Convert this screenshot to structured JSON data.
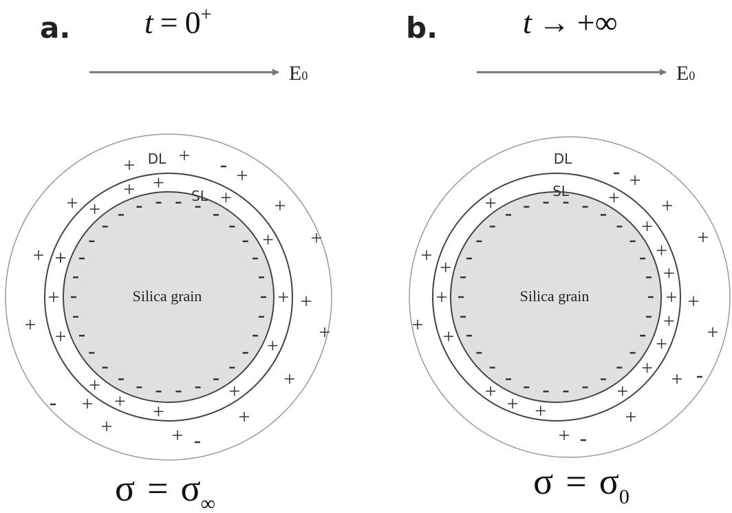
{
  "panels": [
    {
      "label": "a.",
      "time": {
        "variable": "t",
        "relation": "=",
        "value": "0",
        "superscript": "+"
      },
      "field": {
        "symbol": "E",
        "subscript": "0"
      },
      "layers": {
        "outer": "DL",
        "inner": "SL"
      },
      "grain": "Silica grain",
      "conductivity": {
        "lhs": "σ",
        "relation": "=",
        "rhs": "σ",
        "subscript": "∞"
      }
    },
    {
      "label": "b.",
      "time": {
        "variable": "t",
        "relation": "→",
        "value": "+∞"
      },
      "field": {
        "symbol": "E",
        "subscript": "0"
      },
      "layers": {
        "outer": "DL",
        "inner": "SL"
      },
      "grain": "Silica grain",
      "conductivity": {
        "lhs": "σ",
        "relation": "=",
        "rhs": "σ",
        "subscript": "0"
      }
    }
  ]
}
